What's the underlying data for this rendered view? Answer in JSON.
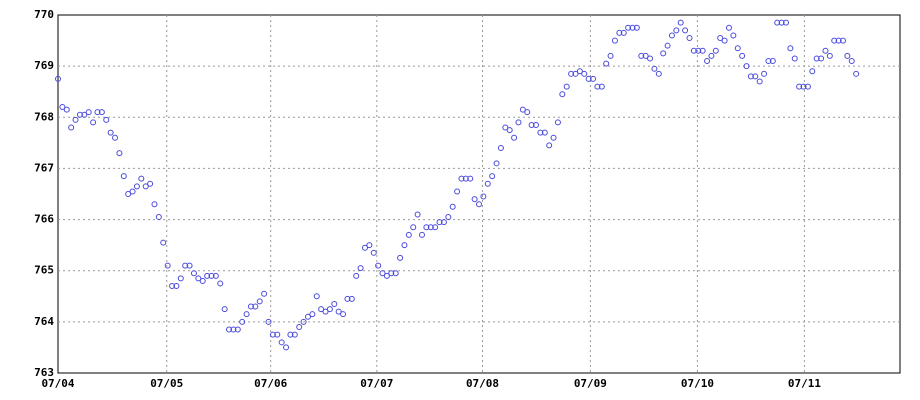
{
  "chart_data": {
    "type": "scatter",
    "x": [
      0,
      1,
      2,
      3,
      4,
      5,
      6,
      7,
      8,
      9,
      10,
      11,
      12,
      13,
      14,
      15,
      16,
      17,
      18,
      19,
      20,
      21,
      22,
      23,
      24,
      25,
      26,
      27,
      28,
      29,
      30,
      31,
      32,
      33,
      34,
      35,
      36,
      37,
      38,
      39,
      40,
      41,
      42,
      43,
      44,
      45,
      46,
      47,
      48,
      49,
      50,
      51,
      52,
      53,
      54,
      55,
      56,
      57,
      58,
      59,
      60,
      61,
      62,
      63,
      64,
      65,
      66,
      67,
      68,
      69,
      70,
      71,
      72,
      73,
      74,
      75,
      76,
      77,
      78,
      79,
      80,
      81,
      82,
      83,
      84,
      85,
      86,
      87,
      88,
      89,
      90,
      91,
      92,
      93,
      94,
      95,
      96,
      97,
      98,
      99,
      100,
      101,
      102,
      103,
      104,
      105,
      106,
      107,
      108,
      109,
      110,
      111,
      112,
      113,
      114,
      115,
      116,
      117,
      118,
      119,
      120,
      121,
      122,
      123,
      124,
      125,
      126,
      127,
      128,
      129,
      130,
      131,
      132,
      133,
      134,
      135,
      136,
      137,
      138,
      139,
      140,
      141,
      142,
      143,
      144,
      145,
      146,
      147,
      148,
      149,
      150,
      151,
      152,
      153,
      154,
      155,
      156,
      157,
      158,
      159,
      160,
      161,
      162,
      163,
      164,
      165,
      166,
      167,
      168,
      169,
      170,
      171,
      172,
      173,
      174,
      175,
      176,
      177,
      178,
      179,
      180,
      181,
      182
    ],
    "values": [
      768.75,
      768.2,
      768.15,
      767.8,
      767.95,
      768.05,
      768.05,
      768.1,
      767.9,
      768.1,
      768.1,
      767.95,
      767.7,
      767.6,
      767.3,
      766.85,
      766.5,
      766.55,
      766.65,
      766.8,
      766.65,
      766.7,
      766.3,
      766.05,
      765.55,
      765.1,
      764.7,
      764.7,
      764.85,
      765.1,
      765.1,
      764.95,
      764.85,
      764.8,
      764.9,
      764.9,
      764.9,
      764.75,
      764.25,
      763.85,
      763.85,
      763.85,
      764.0,
      764.15,
      764.3,
      764.3,
      764.4,
      764.55,
      764.0,
      763.75,
      763.75,
      763.6,
      763.5,
      763.75,
      763.75,
      763.9,
      764.0,
      764.1,
      764.15,
      764.5,
      764.25,
      764.2,
      764.25,
      764.35,
      764.2,
      764.15,
      764.45,
      764.45,
      764.9,
      765.05,
      765.45,
      765.5,
      765.35,
      765.1,
      764.95,
      764.9,
      764.95,
      764.95,
      765.25,
      765.5,
      765.7,
      765.85,
      766.1,
      765.7,
      765.85,
      765.85,
      765.85,
      765.95,
      765.95,
      766.05,
      766.25,
      766.55,
      766.8,
      766.8,
      766.8,
      766.4,
      766.3,
      766.45,
      766.7,
      766.85,
      767.1,
      767.4,
      767.8,
      767.75,
      767.6,
      767.9,
      768.15,
      768.1,
      767.85,
      767.85,
      767.7,
      767.7,
      767.45,
      767.6,
      767.9,
      768.45,
      768.6,
      768.85,
      768.85,
      768.9,
      768.85,
      768.75,
      768.75,
      768.6,
      768.6,
      769.05,
      769.2,
      769.5,
      769.65,
      769.65,
      769.75,
      769.75,
      769.75,
      769.2,
      769.2,
      769.15,
      768.95,
      768.85,
      769.25,
      769.4,
      769.6,
      769.7,
      769.85,
      769.7,
      769.55,
      769.3,
      769.3,
      769.3,
      769.1,
      769.2,
      769.3,
      769.55,
      769.5,
      769.75,
      769.6,
      769.35,
      769.2,
      769.0,
      768.8,
      768.8,
      768.7,
      768.85,
      769.1,
      769.1,
      769.85,
      769.85,
      769.85,
      769.35,
      769.15,
      768.6,
      768.6,
      768.6,
      768.9,
      769.15,
      769.15,
      769.3,
      769.2,
      769.5,
      769.5,
      769.5,
      769.2,
      769.1,
      768.85
    ],
    "color": "#4a4adc",
    "xlim": [
      0,
      192
    ],
    "xticks": [
      {
        "value": 0,
        "label": "07/04"
      },
      {
        "value": 24.8,
        "label": "07/05"
      },
      {
        "value": 48.5,
        "label": "07/06"
      },
      {
        "value": 72.7,
        "label": "07/07"
      },
      {
        "value": 96.8,
        "label": "07/08"
      },
      {
        "value": 121.4,
        "label": "07/09"
      },
      {
        "value": 145.8,
        "label": "07/10"
      },
      {
        "value": 170.2,
        "label": "07/11"
      }
    ],
    "ylim": [
      763,
      770
    ],
    "yticks": [
      763,
      764,
      765,
      766,
      767,
      768,
      769,
      770
    ],
    "grid": true
  }
}
